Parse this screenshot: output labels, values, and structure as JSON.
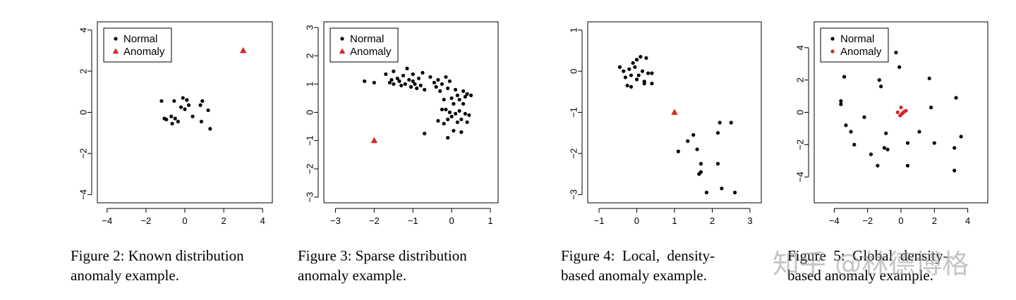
{
  "colors": {
    "normal": "#000000",
    "anomaly": "#d62728"
  },
  "chart_data": [
    {
      "type": "scatter",
      "xlim": [
        -4.5,
        4.5
      ],
      "ylim": [
        -4.4,
        4.4
      ],
      "xticks": [
        -4,
        -2,
        0,
        2,
        4
      ],
      "yticks": [
        -4,
        -2,
        0,
        2,
        4
      ],
      "legend": {
        "placement": "top-left",
        "normal_label": "Normal",
        "anomaly_label": "Anomaly"
      },
      "anomaly_marker": "triangle",
      "normal": [
        [
          -1.2,
          0.55
        ],
        [
          -1.05,
          -0.3
        ],
        [
          -0.95,
          -0.35
        ],
        [
          -0.7,
          -0.2
        ],
        [
          -0.65,
          -0.55
        ],
        [
          -0.55,
          0.55
        ],
        [
          -0.5,
          -0.3
        ],
        [
          -0.35,
          -0.45
        ],
        [
          -0.2,
          0.25
        ],
        [
          -0.1,
          0.7
        ],
        [
          0,
          0.15
        ],
        [
          0.1,
          0.6
        ],
        [
          0.2,
          0.35
        ],
        [
          0.4,
          -0.2
        ],
        [
          0.8,
          0.35
        ],
        [
          0.9,
          0.55
        ],
        [
          0.85,
          -0.45
        ],
        [
          1.2,
          0.1
        ],
        [
          1.3,
          -0.8
        ]
      ],
      "anomaly": [
        [
          3,
          3
        ]
      ]
    },
    {
      "type": "scatter",
      "xlim": [
        -3.3,
        1.2
      ],
      "ylim": [
        -3.2,
        3.2
      ],
      "xticks": [
        -3,
        -2,
        -1,
        0,
        1
      ],
      "yticks": [
        -3,
        -2,
        -1,
        0,
        1,
        2,
        3
      ],
      "legend": {
        "placement": "top-left",
        "normal_label": "Normal",
        "anomaly_label": "Anomaly"
      },
      "anomaly_marker": "triangle",
      "normal": [
        [
          -2.25,
          1.1
        ],
        [
          -2.0,
          1.05
        ],
        [
          -1.7,
          1.35
        ],
        [
          -1.6,
          1.05
        ],
        [
          -1.55,
          1.15
        ],
        [
          -1.5,
          1.0
        ],
        [
          -1.5,
          1.45
        ],
        [
          -1.4,
          1.2
        ],
        [
          -1.35,
          1.1
        ],
        [
          -1.3,
          0.95
        ],
        [
          -1.25,
          1.3
        ],
        [
          -1.2,
          1.0
        ],
        [
          -1.15,
          1.55
        ],
        [
          -1.1,
          1.15
        ],
        [
          -1.05,
          0.9
        ],
        [
          -1.0,
          1.1
        ],
        [
          -1.0,
          1.35
        ],
        [
          -0.95,
          1.0
        ],
        [
          -0.9,
          0.85
        ],
        [
          -0.85,
          1.2
        ],
        [
          -0.8,
          0.95
        ],
        [
          -0.75,
          1.4
        ],
        [
          -0.7,
          0.8
        ],
        [
          -0.55,
          1.25
        ],
        [
          -0.45,
          1.05
        ],
        [
          -0.4,
          0.9
        ],
        [
          -0.35,
          1.15
        ],
        [
          -0.3,
          0.75
        ],
        [
          -0.25,
          1.0
        ],
        [
          -0.2,
          0.45
        ],
        [
          -0.15,
          1.25
        ],
        [
          -0.1,
          0.85
        ],
        [
          -0.05,
          1.1
        ],
        [
          0.0,
          0.5
        ],
        [
          0.05,
          0.3
        ],
        [
          0.1,
          0.8
        ],
        [
          0.15,
          0.6
        ],
        [
          0.2,
          0.45
        ],
        [
          0.3,
          0.75
        ],
        [
          0.35,
          0.55
        ],
        [
          0.4,
          0.65
        ],
        [
          0.5,
          0.6
        ],
        [
          -0.15,
          0.1
        ],
        [
          -0.1,
          -0.25
        ],
        [
          -0.05,
          0.0
        ],
        [
          0.0,
          -0.15
        ],
        [
          0.05,
          0.3
        ],
        [
          0.1,
          -0.05
        ],
        [
          0.15,
          -0.35
        ],
        [
          0.2,
          0.05
        ],
        [
          0.25,
          -0.25
        ],
        [
          0.3,
          0.3
        ],
        [
          0.35,
          -0.05
        ],
        [
          0.4,
          -0.35
        ],
        [
          0.45,
          -0.1
        ],
        [
          -0.35,
          -0.3
        ],
        [
          -0.25,
          0.1
        ],
        [
          -0.2,
          -0.4
        ],
        [
          0.05,
          -0.65
        ],
        [
          0.25,
          -0.7
        ],
        [
          -0.1,
          -0.9
        ],
        [
          -0.7,
          -0.75
        ]
      ],
      "anomaly": [
        [
          -2,
          -1
        ]
      ]
    },
    {
      "type": "scatter",
      "xlim": [
        -1.3,
        3.3
      ],
      "ylim": [
        -3.2,
        1.2
      ],
      "xticks": [
        -1,
        0,
        1,
        2,
        3
      ],
      "yticks": [
        -3,
        -2,
        -1,
        0,
        1
      ],
      "anomaly_marker": "triangle",
      "normal": [
        [
          -0.45,
          0.1
        ],
        [
          -0.35,
          0.0
        ],
        [
          -0.3,
          -0.15
        ],
        [
          -0.25,
          -0.35
        ],
        [
          -0.2,
          0.05
        ],
        [
          -0.15,
          -0.1
        ],
        [
          -0.15,
          -0.38
        ],
        [
          -0.1,
          0.2
        ],
        [
          -0.05,
          0.1
        ],
        [
          0,
          -0.2
        ],
        [
          0.0,
          0.28
        ],
        [
          0.05,
          -0.1
        ],
        [
          0.1,
          0.35
        ],
        [
          0.15,
          0.0
        ],
        [
          0.2,
          -0.25
        ],
        [
          0.2,
          -0.3
        ],
        [
          0.25,
          0.32
        ],
        [
          0.3,
          -0.05
        ],
        [
          0.4,
          -0.3
        ],
        [
          0.4,
          -0.05
        ],
        [
          1.1,
          -1.95
        ],
        [
          1.35,
          -1.7
        ],
        [
          1.5,
          -1.55
        ],
        [
          1.6,
          -1.9
        ],
        [
          1.65,
          -2.5
        ],
        [
          1.7,
          -2.25
        ],
        [
          1.7,
          -2.45
        ],
        [
          1.85,
          -2.95
        ],
        [
          2.15,
          -1.5
        ],
        [
          2.15,
          -2.25
        ],
        [
          2.2,
          -1.25
        ],
        [
          2.25,
          -2.85
        ],
        [
          2.5,
          -1.25
        ],
        [
          2.6,
          -2.95
        ]
      ],
      "anomaly": [
        [
          1,
          -1
        ]
      ]
    },
    {
      "type": "scatter",
      "xlim": [
        -5.2,
        5.2
      ],
      "ylim": [
        -5.6,
        5.6
      ],
      "xticks": [
        -4,
        -2,
        0,
        2,
        4
      ],
      "yticks": [
        -4,
        -2,
        0,
        2,
        4
      ],
      "legend": {
        "placement": "top-left",
        "normal_label": "Normal",
        "anomaly_label": "Anomaly"
      },
      "anomaly_marker": "circle",
      "normal": [
        [
          -3.6,
          0.5
        ],
        [
          -3.6,
          0.7
        ],
        [
          -3.4,
          2.2
        ],
        [
          -3.3,
          -0.8
        ],
        [
          -3.0,
          -1.2
        ],
        [
          -2.8,
          -2.0
        ],
        [
          -2.2,
          -0.3
        ],
        [
          -1.8,
          -2.6
        ],
        [
          -1.4,
          -3.3
        ],
        [
          -1.3,
          2.0
        ],
        [
          -1.2,
          1.6
        ],
        [
          -1.0,
          -2.2
        ],
        [
          -0.9,
          -1.3
        ],
        [
          -0.8,
          -2.3
        ],
        [
          -0.3,
          3.7
        ],
        [
          -0.1,
          2.8
        ],
        [
          0.4,
          -1.9
        ],
        [
          0.4,
          -3.3
        ],
        [
          1.1,
          -1.2
        ],
        [
          1.7,
          2.1
        ],
        [
          1.8,
          0.3
        ],
        [
          2.0,
          -1.9
        ],
        [
          3.2,
          -3.6
        ],
        [
          3.2,
          -2.2
        ],
        [
          3.3,
          0.9
        ],
        [
          3.6,
          -1.5
        ]
      ],
      "anomaly": [
        [
          -0.2,
          0.0
        ],
        [
          0.0,
          0.3
        ],
        [
          0.05,
          -0.1
        ],
        [
          0.2,
          0.05
        ],
        [
          -0.05,
          -0.2
        ],
        [
          0.3,
          0.1
        ],
        [
          0.1,
          -0.05
        ]
      ]
    }
  ],
  "captions": [
    {
      "l1": "Figure 2: Known distribution",
      "l2": "anomaly example."
    },
    {
      "l1": "Figure 3: Sparse distribution",
      "l2": "anomaly example."
    },
    {
      "l1": "Figure 4:  Local,  density-",
      "l2": "based anomaly example."
    },
    {
      "l1": "Figure  5:  Global  density-",
      "l2": "based anomaly example."
    }
  ],
  "watermark": "知乎 @林德博格"
}
